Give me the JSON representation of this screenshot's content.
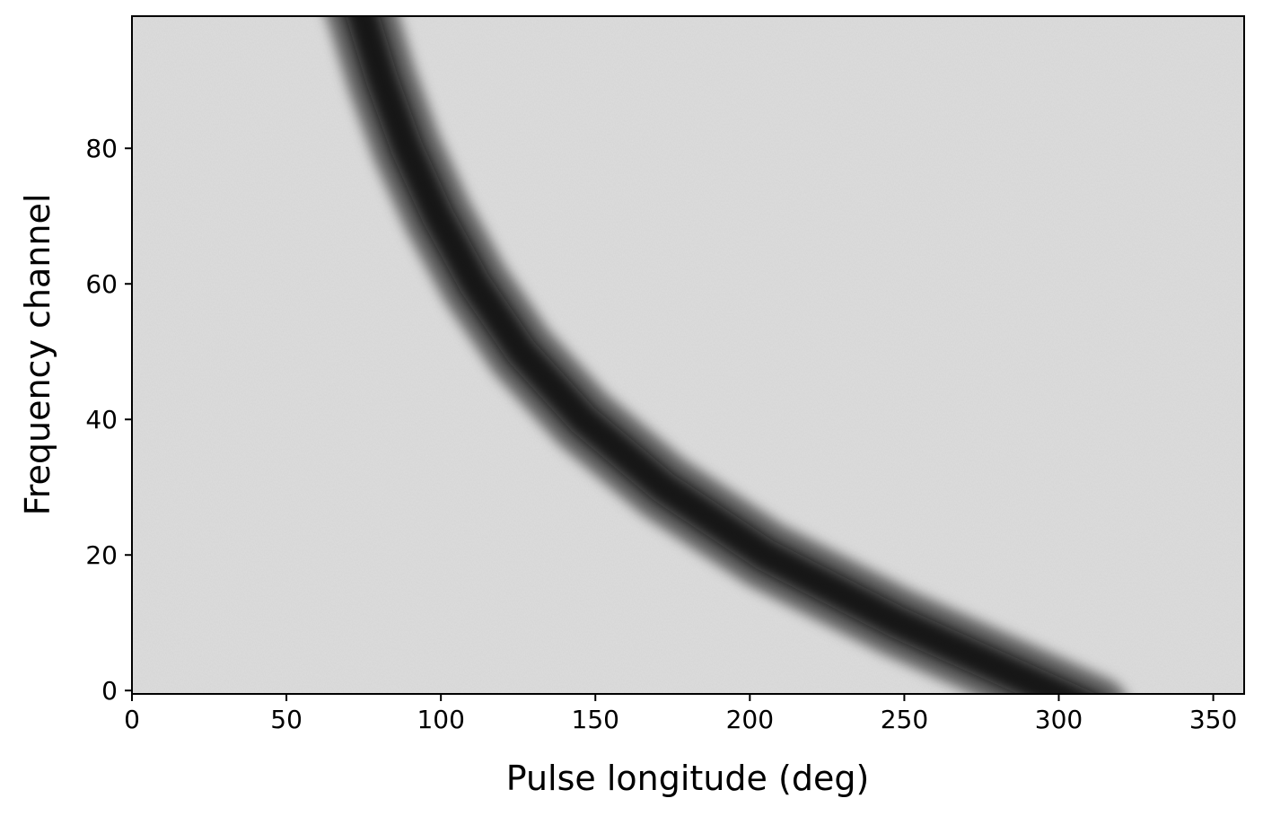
{
  "chart_data": {
    "type": "heatmap",
    "title": "",
    "xlabel": "Pulse longitude (deg)",
    "ylabel": "Frequency channel",
    "xlim": [
      0,
      360
    ],
    "ylim": [
      -0.5,
      99.5
    ],
    "xticks": [
      0,
      50,
      100,
      150,
      200,
      250,
      300,
      350
    ],
    "yticks": [
      0,
      20,
      40,
      60,
      80
    ],
    "colormap": "grayscale (higher intensity = darker)",
    "background_level": "uniform noise, light gray",
    "feature": {
      "description": "dispersed pulse track",
      "peak_longitude_deg_by_channel": [
        {
          "channel": 0,
          "longitude": 297
        },
        {
          "channel": 10,
          "longitude": 248
        },
        {
          "channel": 20,
          "longitude": 205
        },
        {
          "channel": 30,
          "longitude": 172
        },
        {
          "channel": 40,
          "longitude": 146
        },
        {
          "channel": 50,
          "longitude": 126
        },
        {
          "channel": 60,
          "longitude": 111
        },
        {
          "channel": 70,
          "longitude": 99
        },
        {
          "channel": 80,
          "longitude": 89
        },
        {
          "channel": 90,
          "longitude": 81
        },
        {
          "channel": 99,
          "longitude": 75
        }
      ],
      "width_deg": 14
    }
  },
  "colors": {
    "background": "#d6d6d6",
    "pulse": "#0a0a0a",
    "axes": "#000000"
  }
}
